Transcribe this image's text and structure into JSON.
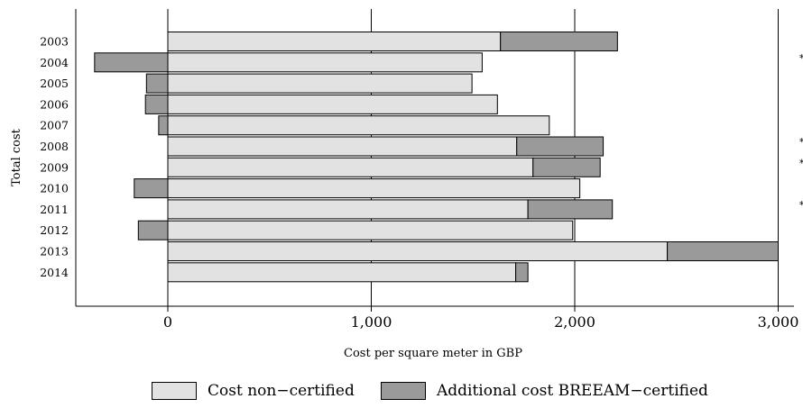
{
  "chart_data": {
    "type": "bar",
    "orientation": "horizontal",
    "stacked": true,
    "categories": [
      "2003",
      "2004",
      "2005",
      "2006",
      "2007",
      "2008",
      "2009",
      "2010",
      "2011",
      "2012",
      "2013",
      "2014"
    ],
    "series": [
      {
        "name": "Cost non−certified",
        "color": "#e2e2e2",
        "values": [
          1635,
          1545,
          1495,
          1620,
          1875,
          1715,
          1795,
          2025,
          1770,
          1990,
          2455,
          1710
        ]
      },
      {
        "name": "Additional cost BREEAM−certified",
        "color": "#9a9a9a",
        "values": [
          575,
          -360,
          -105,
          -110,
          -45,
          425,
          330,
          -165,
          415,
          -145,
          545,
          60
        ]
      }
    ],
    "xlabel": "Cost per square meter in GBP",
    "ylabel": "Total cost",
    "xlim": [
      -450,
      3000
    ],
    "xticks": [
      0,
      1000,
      2000,
      3000
    ],
    "xtick_labels": [
      "0",
      "1,000",
      "2,000",
      "3,000"
    ],
    "grid": "vertical",
    "legend_position": "bottom",
    "annotations": [
      "*",
      "*",
      "*",
      "*"
    ],
    "annotation_rows": [
      "2004",
      "2008",
      "2009",
      "2011"
    ]
  }
}
